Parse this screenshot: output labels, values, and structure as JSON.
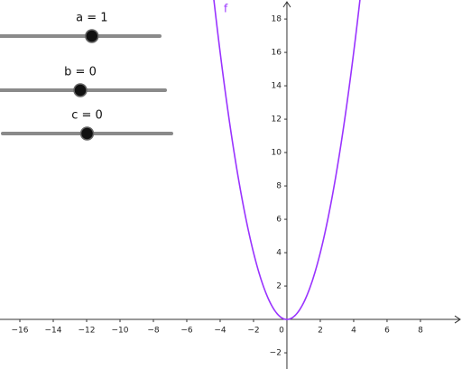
{
  "chart_data": {
    "type": "function",
    "function": {
      "name": "f",
      "a": 1,
      "b": 0,
      "c": 0,
      "color": "#9933ff"
    },
    "sliders": [
      {
        "label": "a = 1",
        "value": 1,
        "xlim": [
          -5,
          5
        ]
      },
      {
        "label": "b = 0",
        "value": 0,
        "xlim": [
          -5,
          5
        ]
      },
      {
        "label": "c = 0",
        "value": 0,
        "xlim": [
          -5,
          5
        ]
      }
    ],
    "xlim": [
      -17.19,
      10.49
    ],
    "ylim": [
      -2.97,
      19.14
    ],
    "xticks": [
      {
        "value": -16,
        "label": "−16"
      },
      {
        "value": -14,
        "label": "−14"
      },
      {
        "value": -12,
        "label": "−12"
      },
      {
        "value": -10,
        "label": "−10"
      },
      {
        "value": -8,
        "label": "−8"
      },
      {
        "value": -6,
        "label": "−6"
      },
      {
        "value": -4,
        "label": "−4"
      },
      {
        "value": -2,
        "label": "−2"
      },
      0,
      2,
      4,
      6,
      8
    ],
    "yticks": [
      {
        "value": -2,
        "label": "−2"
      },
      2,
      4,
      6,
      8,
      10,
      12,
      14,
      16,
      18
    ]
  }
}
